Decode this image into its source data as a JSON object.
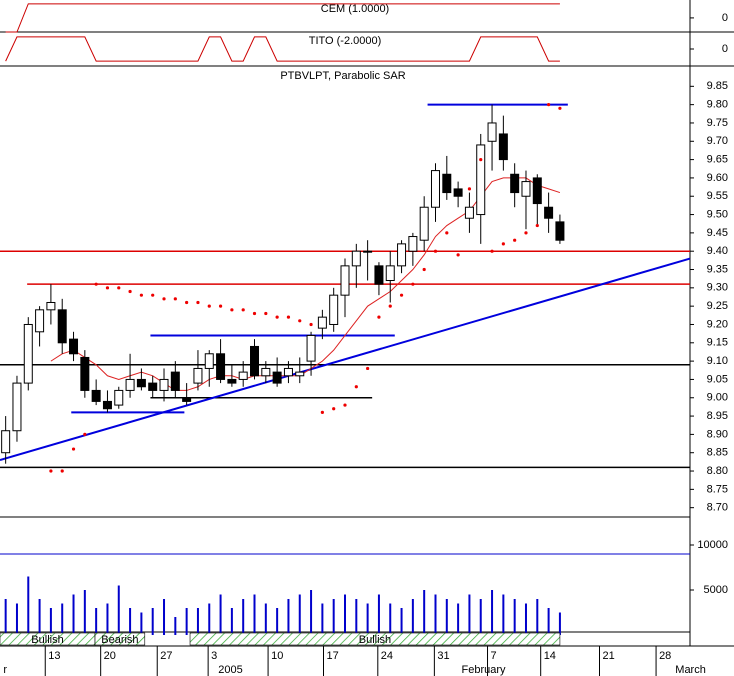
{
  "chart_data": [
    {
      "type": "step",
      "title": "CEM (1.0000)",
      "color": "#cc0000",
      "ylim": [
        -1,
        1.2
      ],
      "yticks": [
        0
      ],
      "values": [
        -1,
        -1,
        1,
        1,
        1,
        1,
        1,
        1,
        1,
        1,
        1,
        1,
        1,
        1,
        1,
        1,
        1,
        1,
        1,
        1,
        1,
        1,
        1,
        1,
        1,
        1,
        1,
        1,
        1,
        1,
        1,
        1,
        1,
        1,
        1,
        1,
        1,
        1,
        1,
        1,
        1,
        1,
        1,
        1,
        1,
        1,
        1,
        1,
        1,
        1
      ]
    },
    {
      "type": "step",
      "title": "TITO (-2.0000)",
      "color": "#cc0000",
      "ylim": [
        -1.4,
        1.4
      ],
      "yticks": [
        0
      ],
      "values": [
        -1,
        1,
        1,
        1,
        1,
        1,
        1,
        1,
        -1,
        -1,
        -1,
        -1,
        -1,
        -1,
        -1,
        -1,
        -1,
        -1,
        1,
        1,
        -1,
        -1,
        1,
        1,
        -1,
        -1,
        -1,
        -1,
        -1,
        -1,
        -1,
        -1,
        -1,
        -1,
        -1,
        -1,
        -1,
        -1,
        -1,
        -1,
        -1,
        -1,
        1,
        1,
        1,
        1,
        1,
        1,
        -1,
        -1
      ]
    },
    {
      "type": "candlestick",
      "title": "PTBVLPT, Parabolic SAR",
      "open": [
        8.85,
        8.91,
        9.04,
        9.18,
        9.24,
        9.24,
        9.16,
        9.11,
        9.02,
        8.99,
        8.98,
        9.02,
        9.05,
        9.04,
        9.02,
        9.07,
        9.0,
        9.04,
        9.08,
        9.12,
        9.05,
        9.05,
        9.14,
        9.06,
        9.07,
        9.06,
        9.06,
        9.1,
        9.19,
        9.2,
        9.28,
        9.36,
        9.4,
        9.36,
        9.32,
        9.36,
        9.4,
        9.43,
        9.52,
        9.61,
        9.57,
        9.49,
        9.5,
        9.7,
        9.72,
        9.61,
        9.55,
        9.6,
        9.52,
        9.48
      ],
      "high": [
        8.95,
        9.06,
        9.22,
        9.25,
        9.31,
        9.27,
        9.18,
        9.13,
        9.05,
        9.02,
        9.03,
        9.12,
        9.08,
        9.06,
        9.08,
        9.1,
        9.04,
        9.13,
        9.13,
        9.16,
        9.09,
        9.1,
        9.16,
        9.1,
        9.11,
        9.1,
        9.11,
        9.18,
        9.24,
        9.3,
        9.38,
        9.42,
        9.43,
        9.37,
        9.4,
        9.43,
        9.45,
        9.55,
        9.64,
        9.66,
        9.59,
        9.56,
        9.72,
        9.8,
        9.77,
        9.64,
        9.62,
        9.61,
        9.56,
        9.5
      ],
      "low": [
        8.82,
        8.88,
        9.02,
        9.14,
        9.2,
        9.12,
        9.1,
        9.0,
        8.98,
        8.96,
        8.97,
        9.0,
        9.02,
        9.0,
        8.99,
        9.0,
        8.98,
        9.02,
        9.03,
        9.04,
        9.03,
        9.03,
        9.05,
        9.04,
        9.03,
        9.04,
        9.04,
        9.06,
        9.16,
        9.18,
        9.22,
        9.3,
        9.32,
        9.28,
        9.26,
        9.34,
        9.36,
        9.4,
        9.48,
        9.54,
        9.52,
        9.45,
        9.42,
        9.62,
        9.62,
        9.52,
        9.46,
        9.47,
        9.45,
        9.42
      ],
      "close": [
        8.91,
        9.04,
        9.2,
        9.24,
        9.26,
        9.15,
        9.12,
        9.02,
        8.99,
        8.97,
        9.02,
        9.05,
        9.03,
        9.02,
        9.05,
        9.02,
        8.99,
        9.08,
        9.12,
        9.05,
        9.04,
        9.07,
        9.06,
        9.08,
        9.04,
        9.08,
        9.07,
        9.17,
        9.22,
        9.28,
        9.36,
        9.4,
        9.4,
        9.31,
        9.36,
        9.42,
        9.44,
        9.52,
        9.62,
        9.56,
        9.55,
        9.52,
        9.69,
        9.75,
        9.65,
        9.56,
        9.59,
        9.53,
        9.49,
        9.43
      ],
      "sar": [
        null,
        null,
        null,
        null,
        8.8,
        8.8,
        8.86,
        8.9,
        9.31,
        9.3,
        9.3,
        9.29,
        9.28,
        9.28,
        9.27,
        9.27,
        9.26,
        9.26,
        9.25,
        9.25,
        9.24,
        9.24,
        9.23,
        9.23,
        9.22,
        9.22,
        9.21,
        9.2,
        8.96,
        8.97,
        8.98,
        9.03,
        9.08,
        9.22,
        9.25,
        9.28,
        9.31,
        9.35,
        9.4,
        9.45,
        9.39,
        9.57,
        9.65,
        9.4,
        9.42,
        9.43,
        9.45,
        9.47,
        9.8,
        9.79
      ],
      "sar_color": "#ee0000",
      "ma": [
        null,
        null,
        null,
        null,
        9.1,
        9.12,
        9.13,
        9.11,
        9.09,
        9.06,
        9.05,
        9.06,
        9.07,
        9.06,
        9.04,
        9.02,
        9.02,
        9.03,
        9.05,
        9.06,
        9.06,
        9.05,
        9.06,
        9.06,
        9.06,
        9.06,
        9.06,
        9.08,
        9.1,
        9.13,
        9.17,
        9.21,
        9.25,
        9.27,
        9.29,
        9.32,
        9.35,
        9.39,
        9.44,
        9.47,
        9.49,
        9.51,
        9.55,
        9.59,
        9.6,
        9.6,
        9.6,
        9.58,
        9.57,
        9.56
      ],
      "ma_color": "#dd2222",
      "lines": [
        {
          "x": [
            -0.5,
            60.5
          ],
          "y": [
            9.4,
            9.4
          ],
          "color": "#dd0000"
        },
        {
          "x": [
            1.9,
            60.5
          ],
          "y": [
            9.31,
            9.31
          ],
          "color": "#dd0000"
        },
        {
          "x": [
            -0.5,
            60.5
          ],
          "y": [
            9.09,
            9.09
          ],
          "color": "#000000"
        },
        {
          "x": [
            -0.5,
            60.5
          ],
          "y": [
            8.81,
            8.81
          ],
          "color": "#000000"
        },
        {
          "x": [
            12.8,
            32.4
          ],
          "y": [
            9.0,
            9.0
          ],
          "color": "#000000"
        },
        {
          "x": [
            37.3,
            49.7
          ],
          "y": [
            9.8,
            9.8
          ],
          "color": "#0000dd"
        },
        {
          "x": [
            12.8,
            34.4
          ],
          "y": [
            9.17,
            9.17
          ],
          "color": "#0000dd"
        },
        {
          "x": [
            5.8,
            15.8
          ],
          "y": [
            8.96,
            8.96
          ],
          "color": "#0000dd"
        },
        {
          "x": [
            -0.5,
            60.5
          ],
          "y": [
            8.83,
            9.38
          ],
          "color": "#0000dd"
        }
      ],
      "xlim": [
        -0.5,
        60.5
      ],
      "ylim": [
        8.68,
        9.9
      ],
      "yticks": [
        9.85,
        {
          "value": 9.8,
          "label": "9.80"
        },
        9.75,
        {
          "value": 9.7,
          "label": "9.70"
        },
        9.65,
        {
          "value": 9.6,
          "label": "9.60"
        },
        9.55,
        {
          "value": 9.5,
          "label": "9.50"
        },
        9.45,
        {
          "value": 9.4,
          "label": "9.40"
        },
        9.35,
        {
          "value": 9.3,
          "label": "9.30"
        },
        9.25,
        {
          "value": 9.2,
          "label": "9.20"
        },
        9.15,
        {
          "value": 9.1,
          "label": "9.10"
        },
        9.05,
        {
          "value": 9.0,
          "label": "9.00"
        },
        8.95,
        {
          "value": 8.9,
          "label": "8.90"
        },
        8.85,
        {
          "value": 8.8,
          "label": "8.80"
        },
        8.75,
        {
          "value": 8.7,
          "label": "8.70"
        }
      ],
      "xticks": [
        {
          "value": 3.5,
          "label": "13"
        },
        {
          "value": 8.4,
          "label": "20"
        },
        {
          "value": 13.4,
          "label": "27"
        },
        {
          "value": 17.9,
          "label": "3"
        },
        {
          "value": 23.2,
          "label": "10"
        },
        {
          "value": 28.1,
          "label": "17"
        },
        {
          "value": 32.9,
          "label": "24"
        },
        {
          "value": 37.9,
          "label": "31"
        },
        {
          "value": 42.6,
          "label": "7"
        },
        {
          "value": 47.3,
          "label": "14"
        },
        {
          "value": 52.5,
          "label": "21"
        },
        {
          "value": 57.5,
          "label": "28"
        }
      ],
      "xlabels_months": [
        {
          "value": -0.2,
          "label": "r"
        },
        {
          "value": 18.8,
          "label": "2005"
        },
        {
          "value": 40.3,
          "label": "February"
        },
        {
          "value": 59.2,
          "label": "March"
        }
      ]
    },
    {
      "type": "bar",
      "color": "#0000cc",
      "ylim": [
        0,
        13000
      ],
      "yticks": [
        5000,
        10000
      ],
      "values": [
        4000,
        3500,
        6500,
        4000,
        3000,
        3500,
        4500,
        5000,
        3000,
        3500,
        5500,
        3000,
        2500,
        3000,
        4000,
        2000,
        3000,
        3000,
        3500,
        4500,
        3000,
        4000,
        4500,
        3500,
        3000,
        4000,
        4500,
        5000,
        3500,
        4000,
        4500,
        4000,
        3500,
        4500,
        3500,
        3000,
        4000,
        5000,
        4500,
        4000,
        3500,
        4500,
        4000,
        5000,
        4500,
        4000,
        3500,
        4000,
        3000,
        2500
      ],
      "hlines": [
        9000
      ],
      "regimes": [
        {
          "label": "Bullish",
          "start": -0.5,
          "end": 7.9
        },
        {
          "label": "Bearish",
          "start": 7.9,
          "end": 12.3
        },
        {
          "label": "Bullish",
          "start": 16.3,
          "end": 49.0
        }
      ]
    }
  ]
}
